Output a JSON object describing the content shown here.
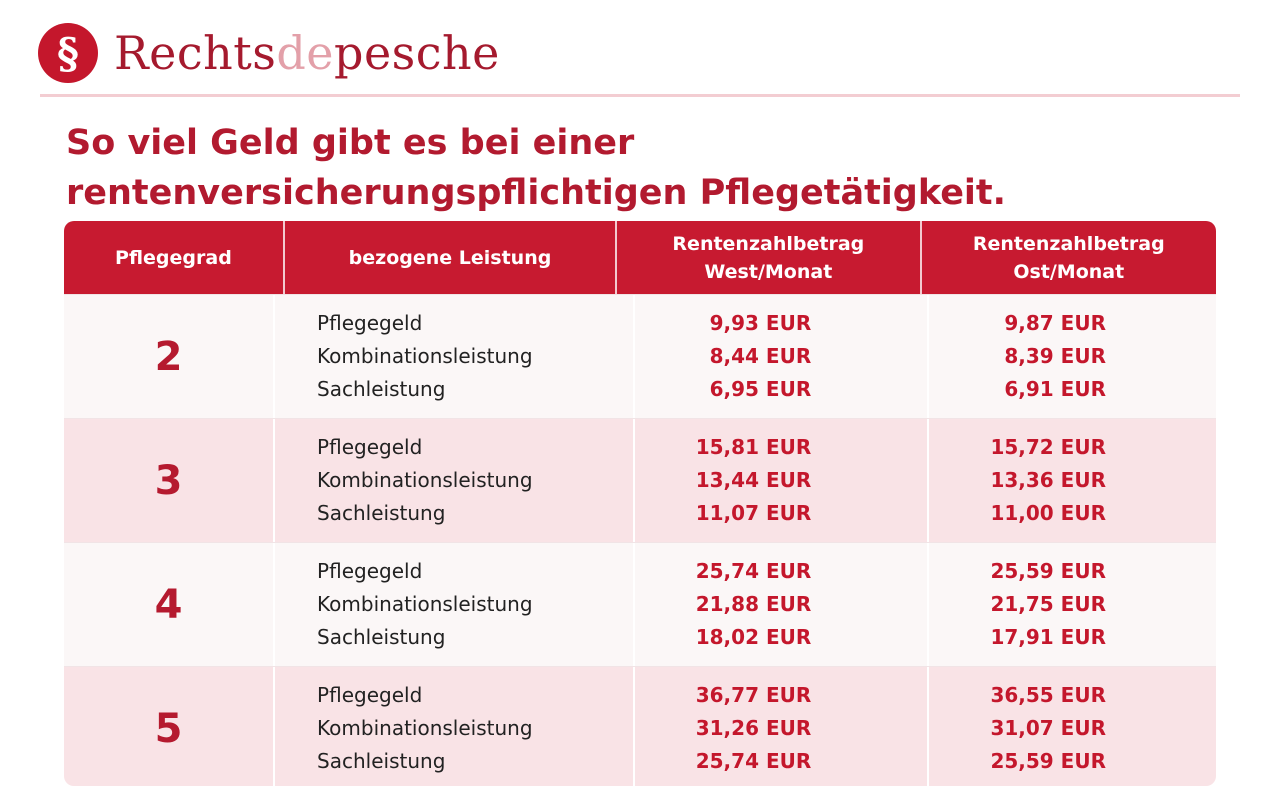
{
  "brand": {
    "name_part1": "Rechts",
    "name_part2": "de",
    "name_part3": "pesche",
    "logo_icon": "paragraph-section-sign-icon",
    "accent_color": "#c4172c"
  },
  "title": {
    "line1": "So viel Geld gibt es bei einer",
    "line2": "rentenversicherungspflichtigen Pflegetätigkeit."
  },
  "table": {
    "headers": {
      "grade": "Pflegegrad",
      "benefit": "bezogene Leistung",
      "west_line1": "Rentenzahlbetrag",
      "west_line2": "West/Monat",
      "east_line1": "Rentenzahlbetrag",
      "east_line2": "Ost/Monat"
    },
    "rows": [
      {
        "grade": "2",
        "benefits": [
          "Pflegegeld",
          "Kombinationsleistung",
          "Sachleistung"
        ],
        "west": [
          "9,93 EUR",
          "8,44 EUR",
          "6,95 EUR"
        ],
        "east": [
          "9,87 EUR",
          "8,39 EUR",
          "6,91 EUR"
        ]
      },
      {
        "grade": "3",
        "benefits": [
          "Pflegegeld",
          "Kombinationsleistung",
          "Sachleistung"
        ],
        "west": [
          "15,81 EUR",
          "13,44 EUR",
          "11,07 EUR"
        ],
        "east": [
          "15,72 EUR",
          "13,36 EUR",
          "11,00 EUR"
        ]
      },
      {
        "grade": "4",
        "benefits": [
          "Pflegegeld",
          "Kombinationsleistung",
          "Sachleistung"
        ],
        "west": [
          "25,74 EUR",
          "21,88 EUR",
          "18,02 EUR"
        ],
        "east": [
          "25,59 EUR",
          "21,75 EUR",
          "17,91 EUR"
        ]
      },
      {
        "grade": "5",
        "benefits": [
          "Pflegegeld",
          "Kombinationsleistung",
          "Sachleistung"
        ],
        "west": [
          "36,77 EUR",
          "31,26 EUR",
          "25,74 EUR"
        ],
        "east": [
          "36,55 EUR",
          "31,07 EUR",
          "25,59 EUR"
        ]
      }
    ]
  }
}
